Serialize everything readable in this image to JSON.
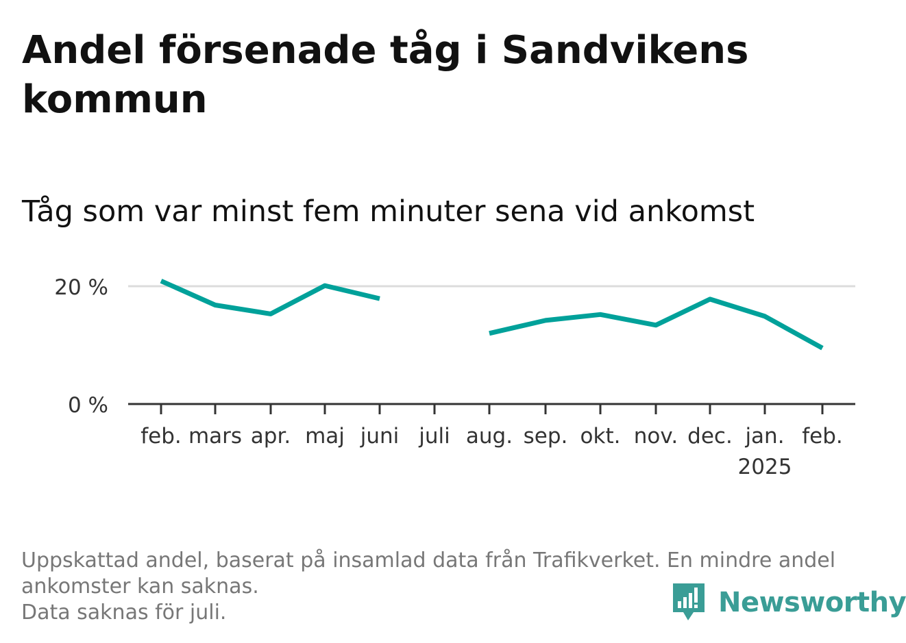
{
  "title": "Andel försenade tåg i Sandvikens kommun",
  "subtitle": "Tåg som var minst fem minuter sena vid ankomst",
  "footer": {
    "line1": "Uppskattad andel, baserat på insamlad data från Trafikverket. En mindre andel",
    "line2": "ankomster kan saknas.",
    "line3": "Data saknas för juli."
  },
  "brand": {
    "name": "Newsworthy",
    "color": "#3a9d96",
    "icon": "newsworthy-logo-icon"
  },
  "chart_data": {
    "type": "line",
    "categories": [
      "feb.",
      "mars",
      "apr.",
      "maj",
      "juni",
      "juli",
      "aug.",
      "sep.",
      "okt.",
      "nov.",
      "dec.",
      "jan.",
      "feb."
    ],
    "year_labels": [
      {
        "category_index": 11,
        "label": "2025"
      }
    ],
    "series": [
      {
        "color": "#00a19a",
        "values": [
          20.9,
          16.8,
          15.3,
          20.1,
          17.9,
          null,
          12.0,
          14.2,
          15.2,
          13.4,
          17.8,
          14.9,
          9.5
        ]
      }
    ],
    "y_ticks": [
      {
        "value": 0,
        "label": "0 %"
      },
      {
        "value": 20,
        "label": "20 %"
      }
    ],
    "ylim": [
      0,
      21.5
    ],
    "grid": true,
    "missing": [
      "juli"
    ]
  }
}
